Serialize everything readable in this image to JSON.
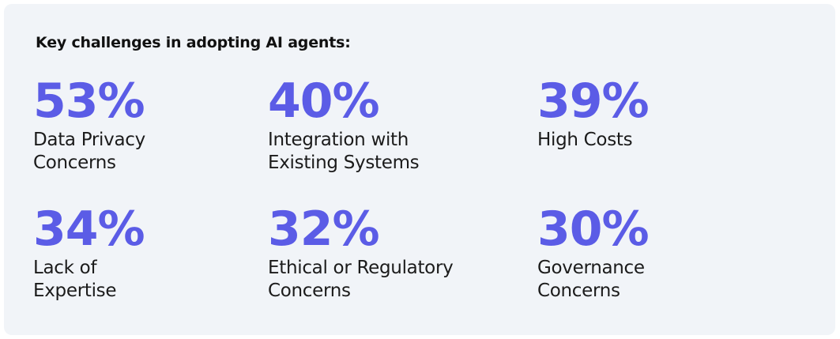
{
  "title": "Key challenges in adopting AI agents:",
  "stats": [
    {
      "value": "53%",
      "label": [
        "Data Privacy",
        "Concerns"
      ]
    },
    {
      "value": "40%",
      "label": [
        "Integration with",
        "Existing Systems"
      ]
    },
    {
      "value": "39%",
      "label": [
        "High Costs"
      ]
    },
    {
      "value": "34%",
      "label": [
        "Lack of",
        "Expertise"
      ]
    },
    {
      "value": "32%",
      "label": [
        "Ethical or Regulatory",
        "Concerns"
      ]
    },
    {
      "value": "30%",
      "label": [
        "Governance",
        "Concerns"
      ]
    }
  ]
}
